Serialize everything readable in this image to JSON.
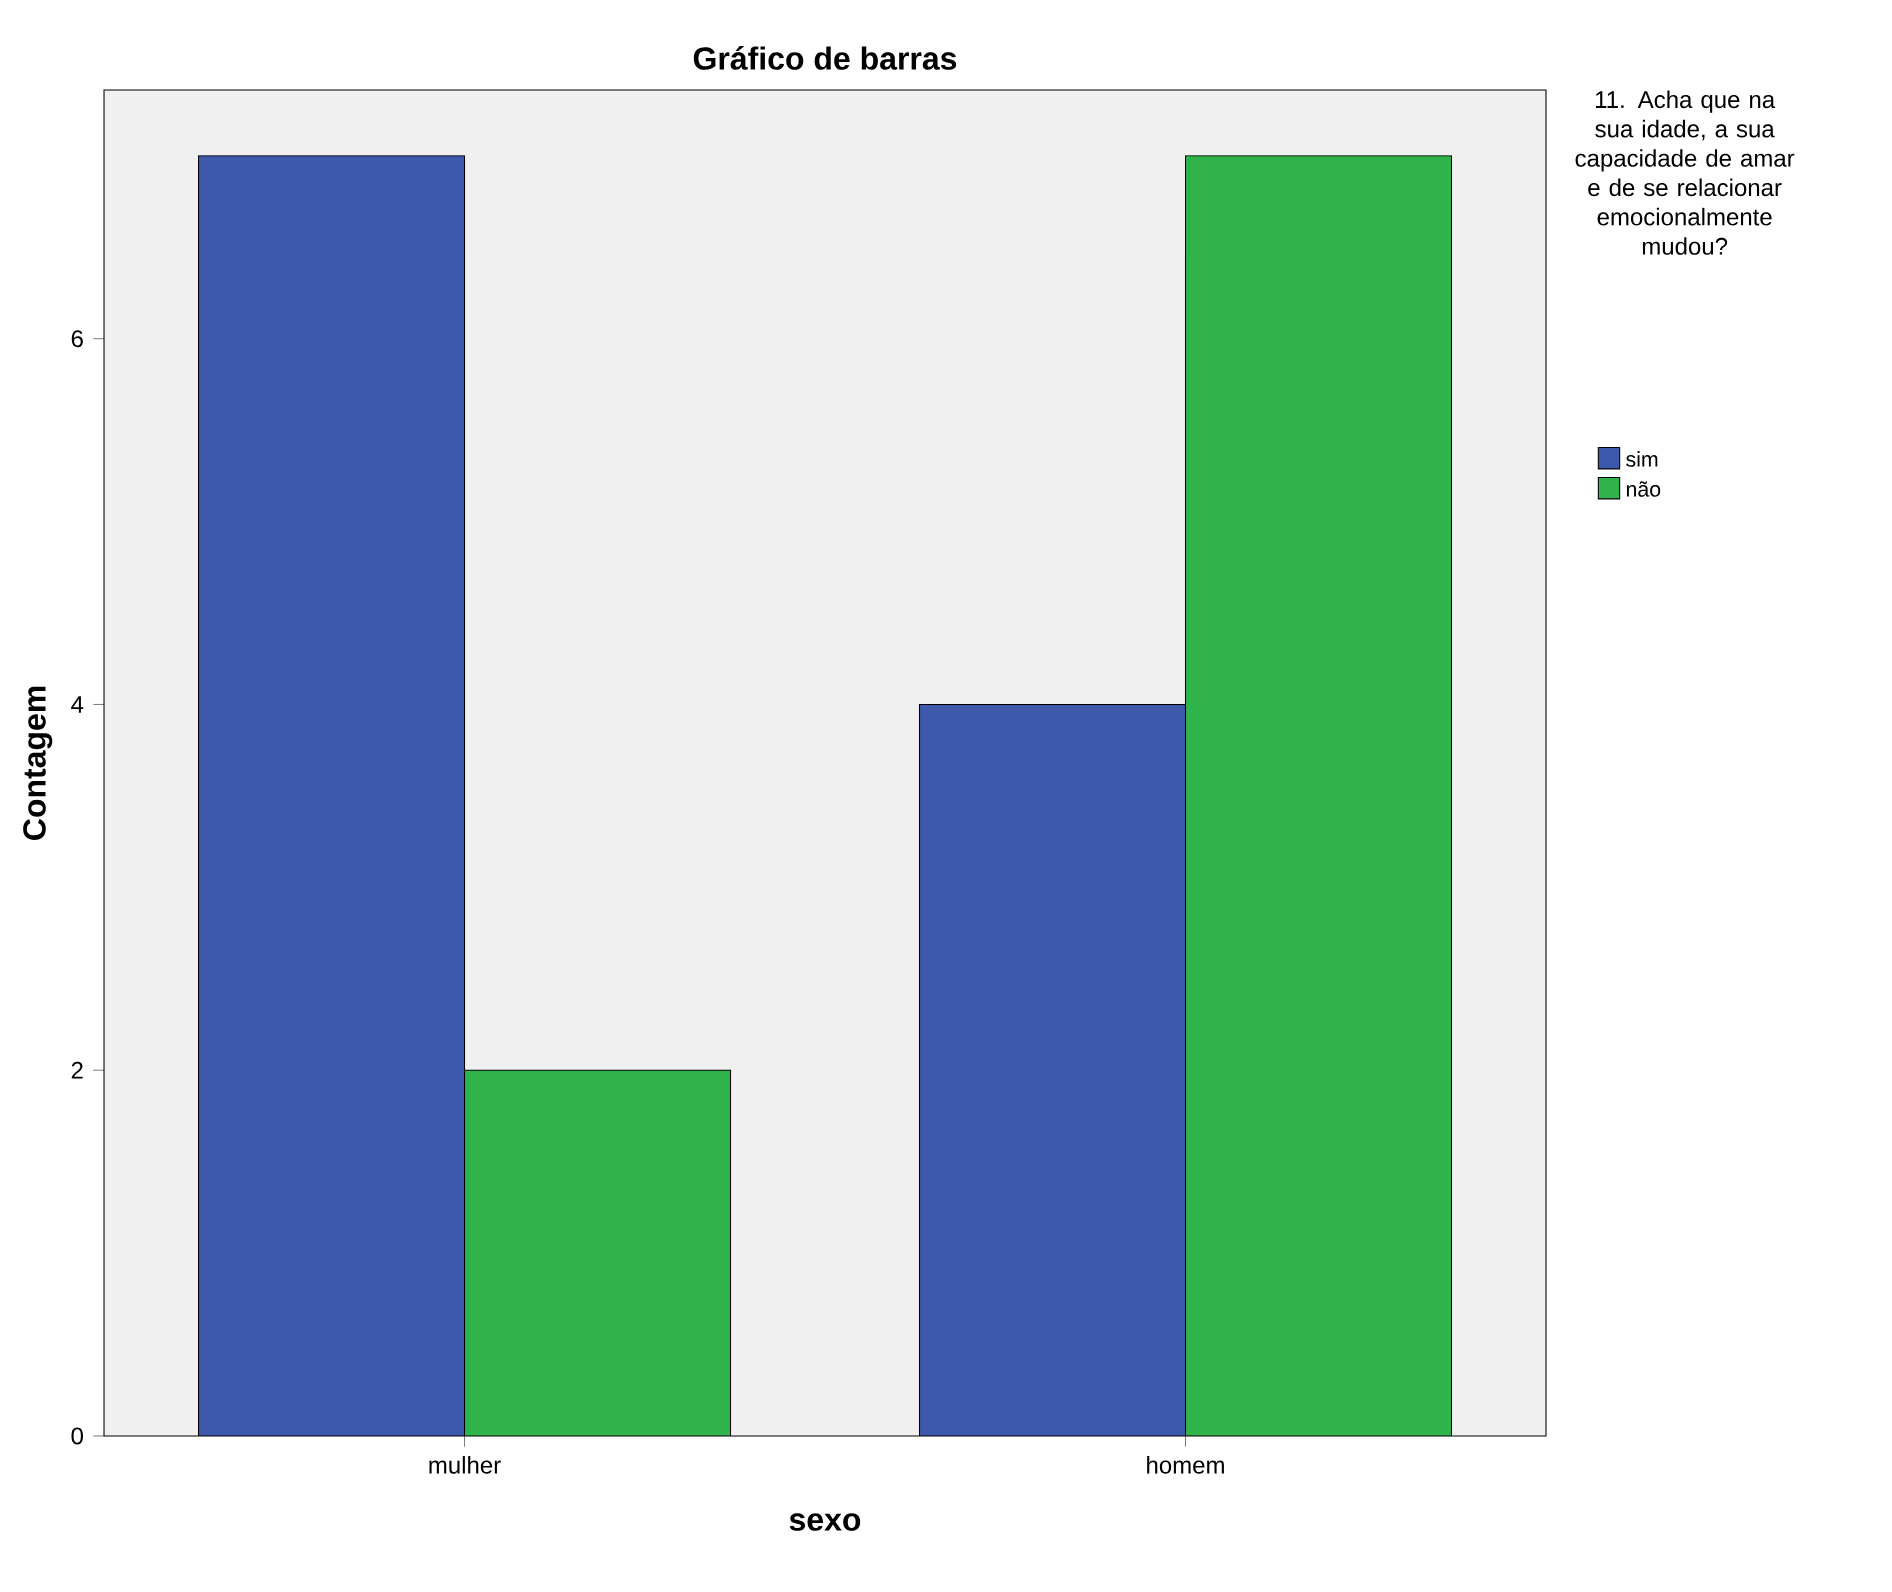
{
  "chart_data": {
    "type": "bar",
    "title": "Gráfico de barras",
    "xlabel": "sexo",
    "ylabel": "Contagem",
    "legend_title": "11. Acha que na sua idade, a sua capacidade de amar e de se relacionar emocionalmente mudou?",
    "categories": [
      "mulher",
      "homem"
    ],
    "series": [
      {
        "name": "sim",
        "color": "#3e58ac",
        "values": [
          7,
          4
        ]
      },
      {
        "name": "não",
        "color": "#2fb34a",
        "values": [
          2,
          7
        ]
      }
    ],
    "ylim": [
      0,
      7.36
    ],
    "yticks": [
      0,
      2,
      4,
      6
    ],
    "grid": false,
    "legend": "right"
  }
}
